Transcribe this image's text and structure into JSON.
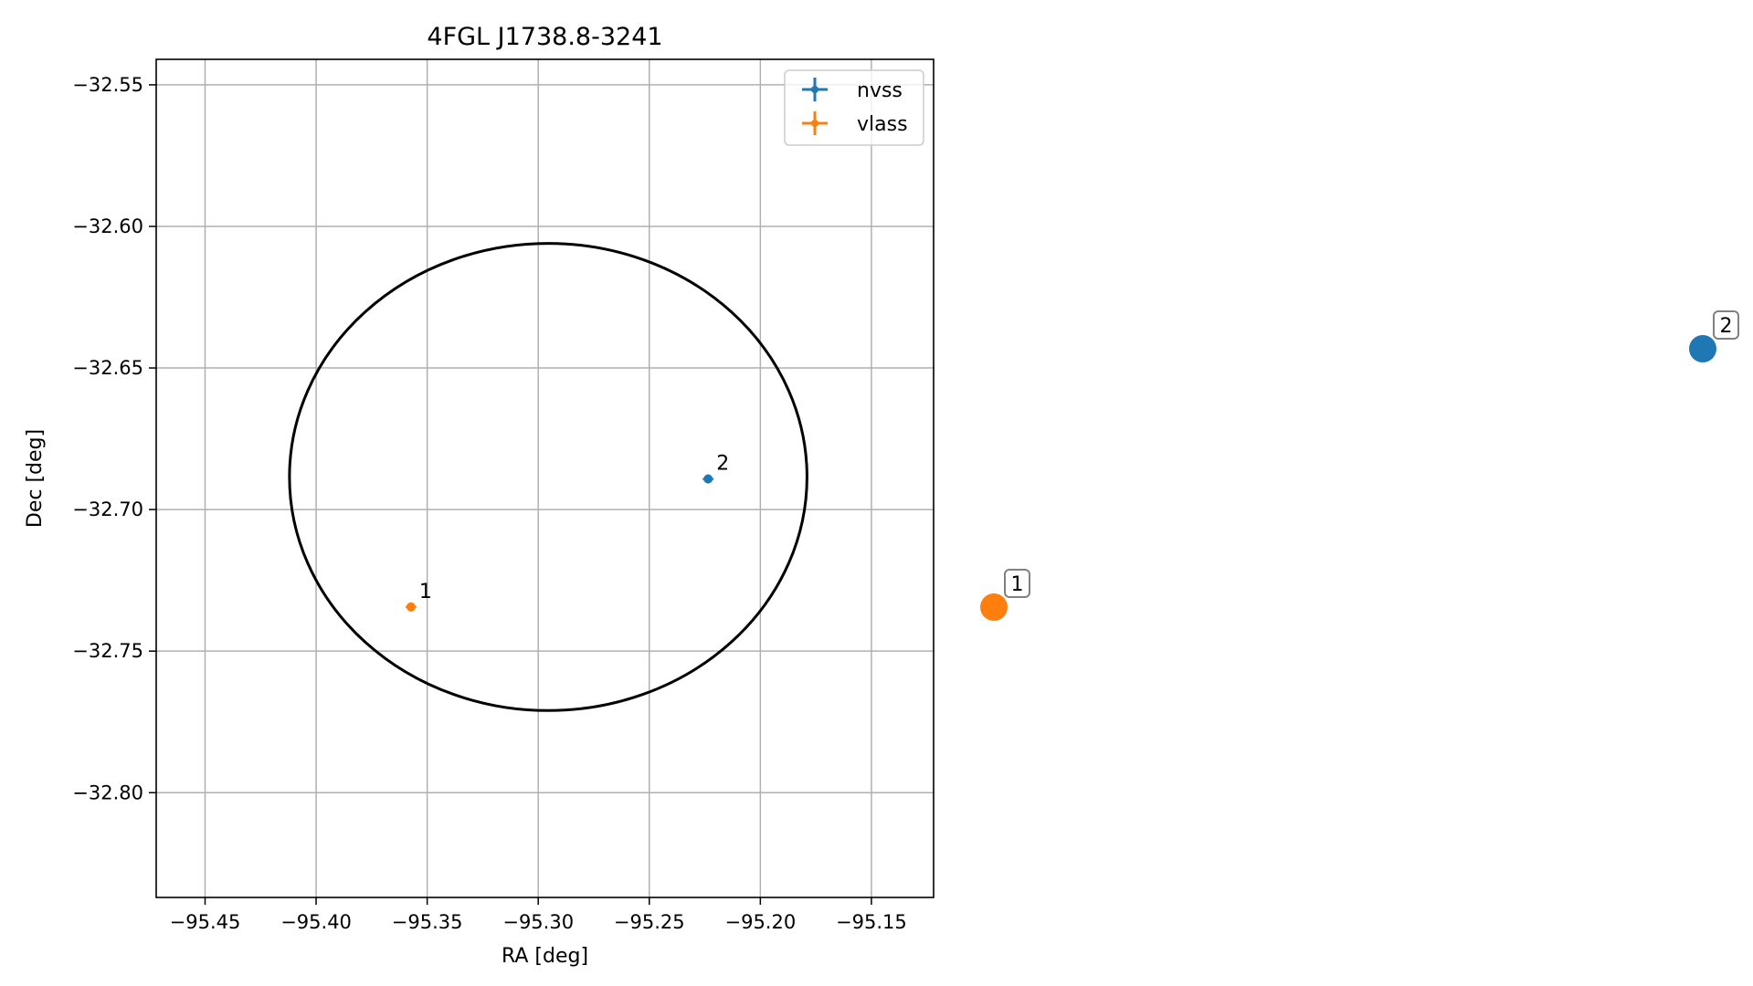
{
  "chart_data": {
    "type": "scatter",
    "title": "4FGL J1738.8-3241",
    "xlabel": "RA [deg]",
    "ylabel": "Dec [deg]",
    "xlim": [
      -95.472,
      -95.122
    ],
    "ylim": [
      -32.837,
      -32.541
    ],
    "grid": true,
    "legend_position": "top-right",
    "x_ticks": [
      -95.45,
      -95.4,
      -95.35,
      -95.3,
      -95.25,
      -95.2,
      -95.15
    ],
    "x_tick_labels": [
      "−95.45",
      "−95.40",
      "−95.35",
      "−95.30",
      "−95.25",
      "−95.20",
      "−95.15"
    ],
    "y_ticks": [
      -32.55,
      -32.6,
      -32.65,
      -32.7,
      -32.75,
      -32.8
    ],
    "y_tick_labels": [
      "−32.55",
      "−32.60",
      "−32.65",
      "−32.70",
      "−32.75",
      "−32.80"
    ],
    "ellipse": {
      "center": [
        -95.2955,
        -32.6885
      ],
      "semi_axis_ra": 0.1165,
      "semi_axis_dec": 0.0825,
      "color": "#000000"
    },
    "series": [
      {
        "name": "nvss",
        "color": "#1f77b4",
        "points": [
          {
            "label": "2",
            "x": -95.2235,
            "y": -32.6892
          }
        ]
      },
      {
        "name": "vlass",
        "color": "#ff7f0e",
        "points": [
          {
            "label": "1",
            "x": -95.3573,
            "y": -32.7344
          }
        ]
      }
    ],
    "outside_markers": [
      {
        "label": "2",
        "series": "nvss",
        "color": "#1f77b4"
      },
      {
        "label": "1",
        "series": "vlass",
        "color": "#ff7f0e"
      }
    ]
  }
}
